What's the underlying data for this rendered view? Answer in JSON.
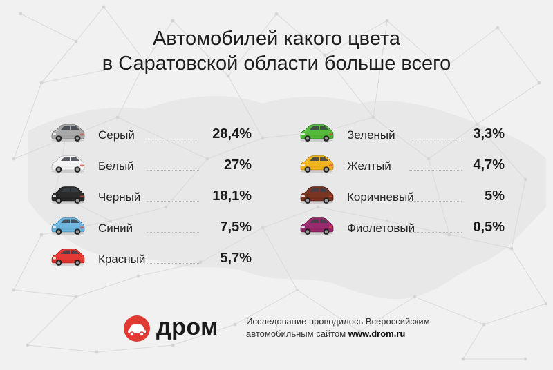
{
  "title": {
    "line1": "Автомобилей какого цвета",
    "line2": "в Саратовской области больше всего"
  },
  "colors": {
    "background": "#f1f1f1",
    "network_lines": "#dcdcdc",
    "map": "#e4e4e4",
    "brand_red": "#e03a32"
  },
  "left_column": [
    {
      "label": "Серый",
      "value": "28,4%",
      "car_color": "#a9a9a9"
    },
    {
      "label": "Белый",
      "value": "27%",
      "car_color": "#f4f4f4"
    },
    {
      "label": "Черный",
      "value": "18,1%",
      "car_color": "#2b2b2b"
    },
    {
      "label": "Синий",
      "value": "7,5%",
      "car_color": "#6fb6df"
    },
    {
      "label": "Красный",
      "value": "5,7%",
      "car_color": "#e53935"
    }
  ],
  "right_column": [
    {
      "label": "Зеленый",
      "value": "3,3%",
      "car_color": "#55b93c"
    },
    {
      "label": "Желтый",
      "value": "4,7%",
      "car_color": "#f2b51f"
    },
    {
      "label": "Коричневый",
      "value": "5%",
      "car_color": "#7a3522"
    },
    {
      "label": "Фиолетовый",
      "value": "0,5%",
      "car_color": "#9a2a6e"
    }
  ],
  "footer": {
    "logo_text": "дром",
    "logo_icon": "drom-car-icon",
    "note_line1": "Исследование проводилось Всероссийским",
    "note_line2_prefix": "автомобильным сайтом ",
    "note_line2_site": "www.drom.ru"
  }
}
